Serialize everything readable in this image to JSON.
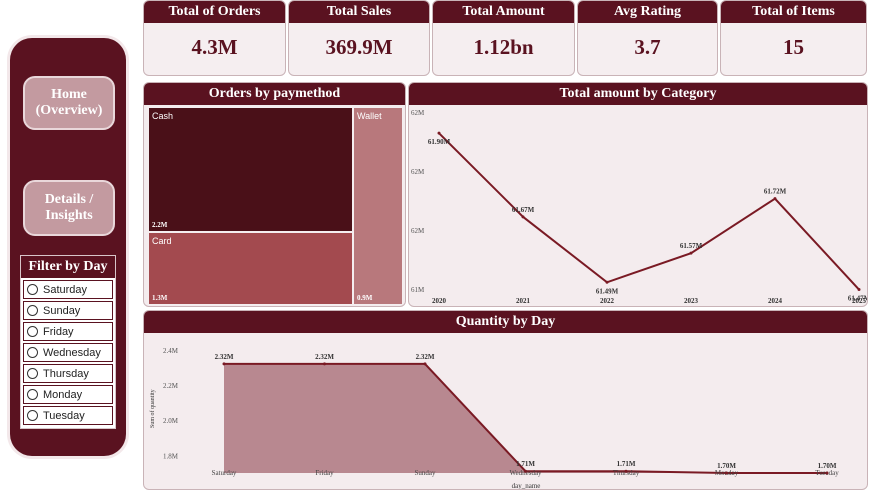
{
  "nav": {
    "home_label": "Home (Overview)",
    "details_label": "Details / Insights"
  },
  "filter": {
    "title": "Filter by Day",
    "days": [
      "Saturday",
      "Sunday",
      "Friday",
      "Wednesday",
      "Thursday",
      "Monday",
      "Tuesday"
    ]
  },
  "kpis": [
    {
      "label": "Total of Orders",
      "value": "4.3M"
    },
    {
      "label": "Total Sales",
      "value": "369.9M"
    },
    {
      "label": "Total Amount",
      "value": "1.12bn"
    },
    {
      "label": "Avg Rating",
      "value": "3.7"
    },
    {
      "label": "Total of Items",
      "value": "15"
    }
  ],
  "theme": {
    "accent": "#5a1220",
    "line": "#7a1a24"
  },
  "chart_data": [
    {
      "type": "treemap",
      "title": "Orders by paymethod",
      "items": [
        {
          "label": "Cash",
          "value_label": "2.2M",
          "value": 2.2,
          "color": "#4a1018"
        },
        {
          "label": "Card",
          "value_label": "1.3M",
          "value": 1.3,
          "color": "#a34a4f"
        },
        {
          "label": "Wallet",
          "value_label": "0.9M",
          "value": 0.9,
          "color": "#b8787c"
        }
      ]
    },
    {
      "type": "line",
      "title": "Total amount by Category",
      "x": [
        "2020",
        "2021",
        "2022",
        "2023",
        "2024",
        "2025"
      ],
      "values": [
        61.9,
        61.67,
        61.49,
        61.57,
        61.72,
        61.47
      ],
      "data_labels": [
        "61.90M",
        "61.67M",
        "61.49M",
        "61.57M",
        "61.72M",
        "61.47M"
      ],
      "y_ticks": [
        "62M",
        "62M",
        "62M",
        "61M"
      ],
      "ylim": [
        61.4,
        61.95
      ]
    },
    {
      "type": "area",
      "title": "Quantity by Day",
      "xlabel": "day_name",
      "ylabel": "Sum of quantity",
      "x": [
        "Saturday",
        "Friday",
        "Sunday",
        "Wednesday",
        "Thursday",
        "Monday",
        "Tuesday"
      ],
      "values": [
        2.32,
        2.32,
        2.32,
        1.71,
        1.71,
        1.7,
        1.7
      ],
      "data_labels": [
        "2.32M",
        "2.32M",
        "2.32M",
        "1.71M",
        "1.71M",
        "1.70M",
        "1.70M"
      ],
      "y_ticks": [
        "2.4M",
        "2.2M",
        "2.0M",
        "1.8M"
      ],
      "y_tick_values": [
        2.4,
        2.2,
        2.0,
        1.8
      ],
      "ylim": [
        1.7,
        2.45
      ]
    }
  ]
}
